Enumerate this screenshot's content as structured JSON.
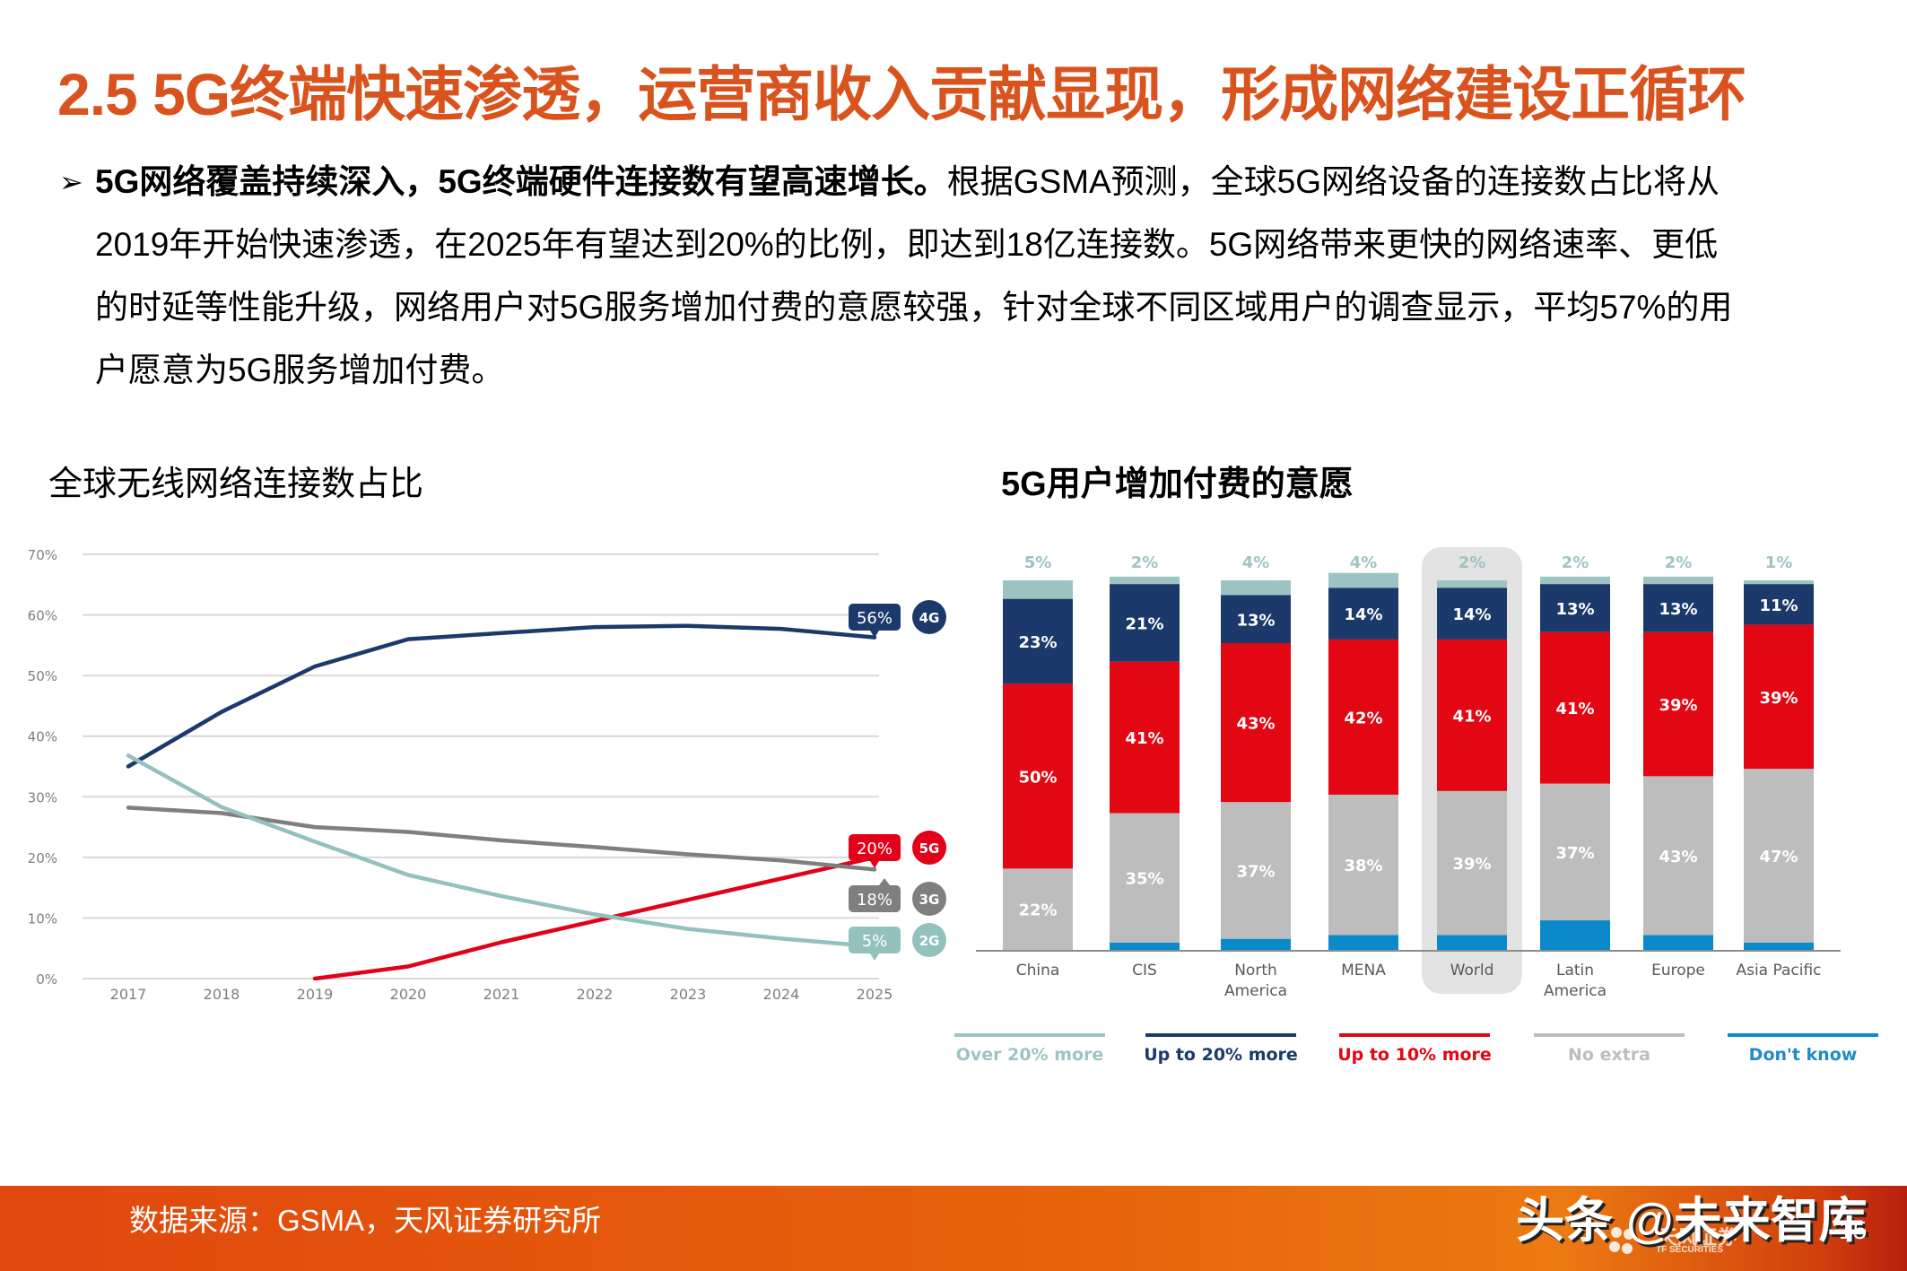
{
  "header": {
    "title": "2.5 5G终端快速渗透，运营商收入贡献显现，形成网络建设正循环"
  },
  "bullet": {
    "arrow_icon": "➢",
    "strong": "5G网络覆盖持续深入，5G终端硬件连接数有望高速增长。",
    "line1_rest": "根据GSMA预测，全球5G网络设备的连接数占比将从",
    "line2": "2019年开始快速渗透，在2025年有望达到20%的比例，即达到18亿连接数。5G网络带来更快的网络速率、更低",
    "line3": "的时延等性能升级，网络用户对5G服务增加付费的意愿较强，针对全球不同区域用户的调查显示，平均57%的用",
    "line4": "户愿意为5G服务增加付费。"
  },
  "chart_data": [
    {
      "type": "line",
      "title": "全球无线网络连接数占比",
      "xlabel": "",
      "ylabel": "",
      "x": [
        "2017",
        "2018",
        "2019",
        "2020",
        "2021",
        "2022",
        "2023",
        "2024",
        "2025"
      ],
      "ylim": [
        0,
        70
      ],
      "yticks": [
        "0%",
        "10%",
        "20%",
        "30%",
        "40%",
        "50%",
        "60%",
        "70%"
      ],
      "grid": true,
      "series": [
        {
          "name": "4G",
          "color": "#1B3A6B",
          "values": [
            35,
            44,
            51.5,
            56,
            57,
            58,
            58.2,
            57.7,
            56.3
          ],
          "end_label": "56%"
        },
        {
          "name": "5G",
          "color": "#E2001A",
          "values": [
            null,
            null,
            0,
            2,
            6,
            9.5,
            13,
            16.5,
            20
          ],
          "end_label": "20%"
        },
        {
          "name": "3G",
          "color": "#7F7F7F",
          "values": [
            28.2,
            27.3,
            25,
            24.2,
            22.8,
            21.7,
            20.5,
            19.5,
            18
          ],
          "end_label": "18%"
        },
        {
          "name": "2G",
          "color": "#92C1BE",
          "values": [
            36.8,
            28.3,
            22.6,
            17.1,
            13.6,
            10.6,
            8.2,
            6.6,
            5.3
          ],
          "end_label": "5%"
        }
      ]
    },
    {
      "type": "bar",
      "stacked": true,
      "title": "5G用户增加付费的意愿",
      "categories": [
        "China",
        "CIS",
        "North America",
        "MENA",
        "World",
        "Latin America",
        "Europe",
        "Asia Pacific"
      ],
      "highlight_category": "World",
      "legend_position": "bottom",
      "series": [
        {
          "name": "Don't know",
          "color": "#0A8ACB",
          "label_color": "#1F8CC5",
          "values": [
            0,
            2,
            3,
            4,
            4,
            8,
            4,
            2
          ]
        },
        {
          "name": "No extra",
          "color": "#BDBDBD",
          "label_color": "#FFFFFF",
          "values": [
            22,
            35,
            37,
            38,
            39,
            37,
            43,
            47
          ]
        },
        {
          "name": "Up to 10% more",
          "color": "#E30613",
          "label_color": "#FFFFFF",
          "values": [
            50,
            41,
            43,
            42,
            41,
            41,
            39,
            39
          ]
        },
        {
          "name": "Up to 20% more",
          "color": "#1B3A6B",
          "label_color": "#FFFFFF",
          "values": [
            23,
            21,
            13,
            14,
            14,
            13,
            13,
            11
          ]
        },
        {
          "name": "Over 20% more",
          "color": "#9DC4C2",
          "label_color": "#9DC4C2",
          "values": [
            5,
            2,
            4,
            4,
            2,
            2,
            2,
            1
          ]
        }
      ],
      "legend_order": [
        "Over 20% more",
        "Up to 20% more",
        "Up to 10% more",
        "No extra",
        "Don't know"
      ],
      "legend_text_colors": {
        "Over 20% more": "#9DC4C2",
        "Up to 20% more": "#1B3A6B",
        "Up to 10% more": "#E30613",
        "No extra": "#BDBDBD",
        "Don't know": "#1F8CC5"
      }
    }
  ],
  "footer": {
    "source": "数据来源：GSMA，天风证券研究所",
    "watermark": "头条 @未来智库",
    "logo_text": "天风证券",
    "logo_sub": "TF SECURITIES",
    "page_number": "15"
  },
  "colors": {
    "title_orange": "#D9531E",
    "grid": "#D9D9D9",
    "axis_text": "#7F7F7F"
  }
}
